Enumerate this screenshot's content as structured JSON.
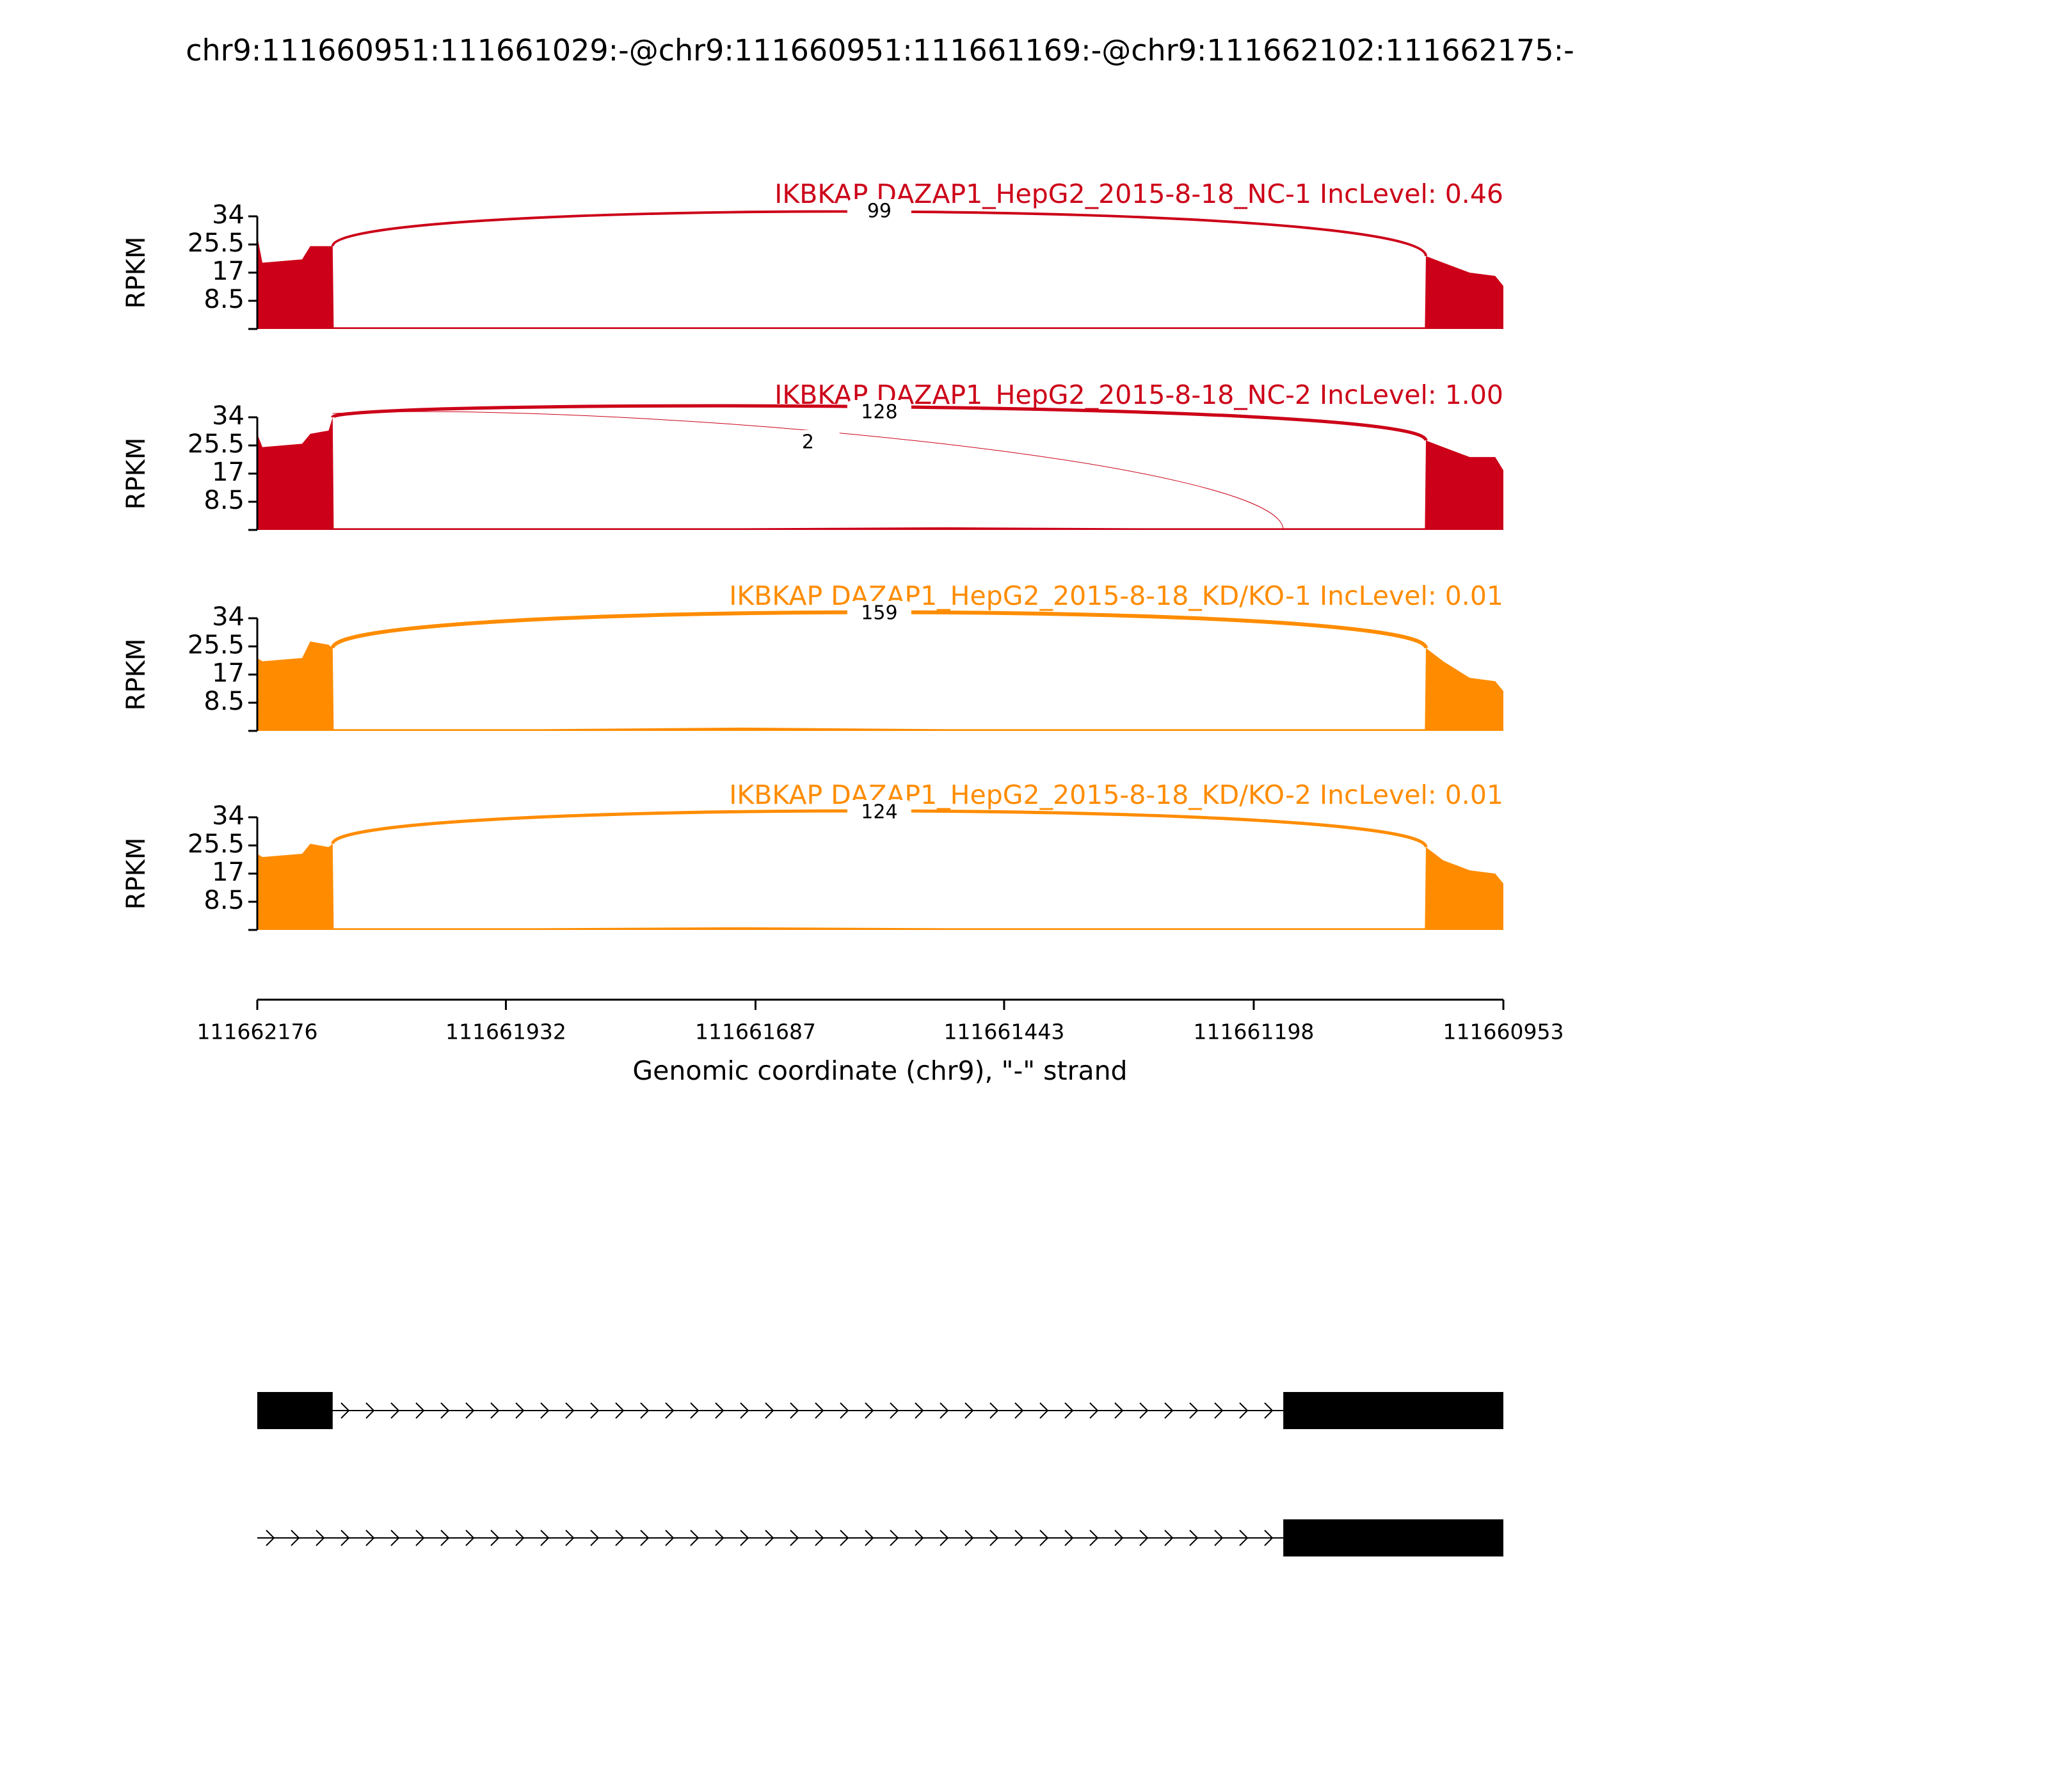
{
  "chart_data": {
    "type": "sashimi",
    "title": "chr9:111660951:111661029:-@chr9:111660951:111661169:-@chr9:111662102:111662175:-",
    "ylabel": "RPKM",
    "xlabel": "Genomic coordinate (chr9), \"-\" strand",
    "xlim": [
      111662176,
      111660953
    ],
    "xticks": [
      111662176,
      111661932,
      111661687,
      111661443,
      111661198,
      111660953
    ],
    "ylim": [
      0,
      34
    ],
    "yticks": [
      8.5,
      17,
      25.5,
      34
    ],
    "panels": [
      {
        "label": "IKBKAP DAZAP1_HepG2_2015-8-18_NC-1 IncLevel: 0.46",
        "color": "#cc0018",
        "x": [
          111662176,
          111662171,
          111662132,
          111662124,
          111662106,
          111662102,
          111662101,
          111661900,
          111661700,
          111661500,
          111661300,
          111661100,
          111661030,
          111661029,
          111661012,
          111660986,
          111660961,
          111660953
        ],
        "values": [
          28,
          20,
          21,
          25,
          25,
          25,
          0.5,
          0.5,
          0.5,
          0.5,
          0.5,
          0.5,
          0.5,
          22,
          20,
          17,
          16,
          13
        ],
        "junctions": [
          {
            "from": 111662102,
            "to": 111661029,
            "count": 99,
            "side": "above"
          }
        ]
      },
      {
        "label": "IKBKAP DAZAP1_HepG2_2015-8-18_NC-2 IncLevel: 1.00",
        "color": "#cc0018",
        "x": [
          111662176,
          111662171,
          111662132,
          111662124,
          111662106,
          111662102,
          111662101,
          111661900,
          111661700,
          111661500,
          111661300,
          111661100,
          111661030,
          111661029,
          111661012,
          111660986,
          111660961,
          111660953
        ],
        "values": [
          29,
          25,
          26,
          29,
          30,
          34,
          0.5,
          0.5,
          0.5,
          0.8,
          0.5,
          0.5,
          0.5,
          27,
          25,
          22,
          22,
          18
        ],
        "junctions": [
          {
            "from": 111662102,
            "to": 111661029,
            "count": 128,
            "side": "above"
          },
          {
            "from": 111662102,
            "to": 111661169,
            "count": 2,
            "side": "below"
          }
        ]
      },
      {
        "label": "IKBKAP DAZAP1_HepG2_2015-8-18_KD/KO-1 IncLevel: 0.01",
        "color": "#ff8c00",
        "x": [
          111662176,
          111662171,
          111662132,
          111662124,
          111662106,
          111662102,
          111662101,
          111661900,
          111661700,
          111661500,
          111661300,
          111661100,
          111661030,
          111661029,
          111661012,
          111660986,
          111660961,
          111660953
        ],
        "values": [
          22,
          21,
          22,
          27,
          26,
          25,
          0.5,
          0.5,
          1,
          0.5,
          0.5,
          0.5,
          0.5,
          25,
          21,
          16,
          15,
          12
        ],
        "junctions": [
          {
            "from": 111662102,
            "to": 111661029,
            "count": 159,
            "side": "above"
          }
        ]
      },
      {
        "label": "IKBKAP DAZAP1_HepG2_2015-8-18_KD/KO-2 IncLevel: 0.01",
        "color": "#ff8c00",
        "x": [
          111662176,
          111662171,
          111662132,
          111662124,
          111662106,
          111662102,
          111662101,
          111661900,
          111661700,
          111661500,
          111661300,
          111661100,
          111661030,
          111661029,
          111661012,
          111660986,
          111660961,
          111660953
        ],
        "values": [
          23,
          22,
          23,
          26,
          25,
          26,
          0.5,
          0.5,
          0.8,
          0.5,
          0.5,
          0.5,
          0.5,
          25,
          21,
          18,
          17,
          14
        ],
        "junctions": [
          {
            "from": 111662102,
            "to": 111661029,
            "count": 124,
            "side": "above"
          }
        ]
      }
    ],
    "transcripts": [
      {
        "span": [
          111662176,
          111661169
        ],
        "exons": [
          [
            111662176,
            111662102
          ],
          [
            111661169,
            111660953
          ]
        ]
      },
      {
        "span": [
          111662176,
          111661169
        ],
        "exons": [
          [
            111661169,
            111660953
          ]
        ]
      }
    ]
  }
}
